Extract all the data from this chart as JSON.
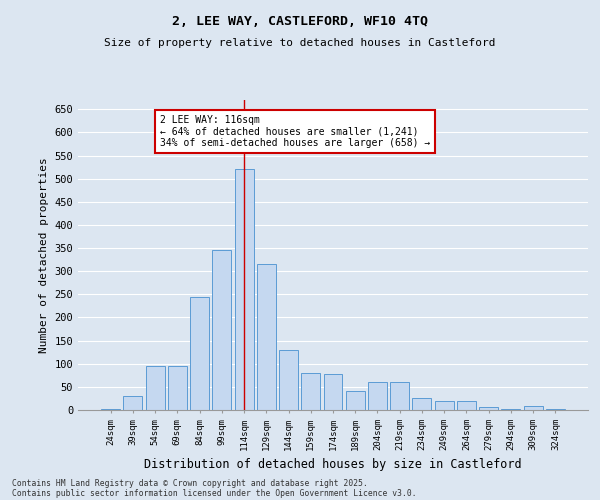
{
  "title1": "2, LEE WAY, CASTLEFORD, WF10 4TQ",
  "title2": "Size of property relative to detached houses in Castleford",
  "xlabel": "Distribution of detached houses by size in Castleford",
  "ylabel": "Number of detached properties",
  "categories": [
    "24sqm",
    "39sqm",
    "54sqm",
    "69sqm",
    "84sqm",
    "99sqm",
    "114sqm",
    "129sqm",
    "144sqm",
    "159sqm",
    "174sqm",
    "189sqm",
    "204sqm",
    "219sqm",
    "234sqm",
    "249sqm",
    "264sqm",
    "279sqm",
    "294sqm",
    "309sqm",
    "324sqm"
  ],
  "values": [
    2,
    30,
    95,
    95,
    245,
    345,
    520,
    315,
    130,
    80,
    78,
    40,
    60,
    60,
    27,
    20,
    20,
    7,
    3,
    8,
    2
  ],
  "bar_color": "#c5d8f0",
  "bar_edge_color": "#5b9bd5",
  "background_color": "#dce6f1",
  "plot_bg_color": "#dce6f1",
  "grid_color": "#ffffff",
  "vline_x": 6,
  "vline_color": "#cc0000",
  "annotation_text": "2 LEE WAY: 116sqm\n← 64% of detached houses are smaller (1,241)\n34% of semi-detached houses are larger (658) →",
  "annotation_box_color": "#ffffff",
  "annotation_box_edge": "#cc0000",
  "footnote1": "Contains HM Land Registry data © Crown copyright and database right 2025.",
  "footnote2": "Contains public sector information licensed under the Open Government Licence v3.0.",
  "ylim": [
    0,
    670
  ],
  "yticks": [
    0,
    50,
    100,
    150,
    200,
    250,
    300,
    350,
    400,
    450,
    500,
    550,
    600,
    650
  ]
}
